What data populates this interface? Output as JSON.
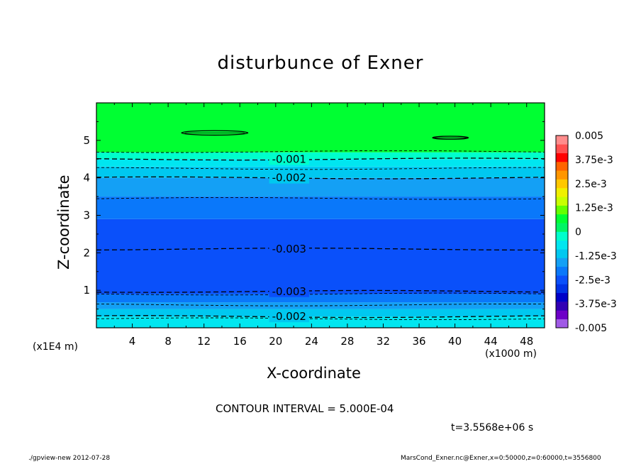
{
  "chart_data": {
    "type": "contour",
    "title": "disturbunce of Exner",
    "xlabel": "X-coordinate",
    "ylabel": "Z-coordinate",
    "x_unit": "(x1000 m)",
    "y_unit": "(x1E4 m)",
    "xlim": [
      0,
      50
    ],
    "ylim": [
      0,
      6
    ],
    "x_ticks": [
      4,
      8,
      12,
      16,
      20,
      24,
      28,
      32,
      36,
      40,
      44,
      48
    ],
    "y_ticks": [
      1,
      2,
      3,
      4,
      5
    ],
    "contour_interval_text": "CONTOUR INTERVAL = 5.000E-04",
    "time_text": "t=3.5568e+06 s",
    "colorbar": {
      "labels": [
        "0.005",
        "3.75e-3",
        "2.5e-3",
        "1.25e-3",
        "0",
        "-1.25e-3",
        "-2.5e-3",
        "-3.75e-3",
        "-0.005"
      ],
      "label_values": [
        0.005,
        0.00375,
        0.0025,
        0.00125,
        0,
        -0.00125,
        -0.0025,
        -0.00375,
        -0.005
      ],
      "colors": [
        "#a05ae6",
        "#6e00c8",
        "#3200b4",
        "#0000c8",
        "#0032e6",
        "#0a50fa",
        "#0a78fa",
        "#14a0f5",
        "#00c8f0",
        "#00e6f0",
        "#00ffcc",
        "#00f564",
        "#00ff32",
        "#64ff00",
        "#c8ff00",
        "#f0f000",
        "#ffc800",
        "#ff9600",
        "#ff6400",
        "#ff0000",
        "#ff5050",
        "#ff8c8c"
      ]
    },
    "bands": [
      {
        "z_from": 0.0,
        "z_to": 0.3,
        "value": -0.00175,
        "color": "#00e6f0"
      },
      {
        "z_from": 0.3,
        "z_to": 0.5,
        "value": -0.00225,
        "color": "#00c8f0"
      },
      {
        "z_from": 0.5,
        "z_to": 0.68,
        "value": -0.00275,
        "color": "#14a0f5"
      },
      {
        "z_from": 0.68,
        "z_to": 0.9,
        "value": -0.00325,
        "color": "#0a78fa"
      },
      {
        "z_from": 0.9,
        "z_to": 2.9,
        "value": -0.00375,
        "color": "#0a50fa"
      },
      {
        "z_from": 2.9,
        "z_to": 3.5,
        "value": -0.00325,
        "color": "#0a78fa"
      },
      {
        "z_from": 3.5,
        "z_to": 4.0,
        "value": -0.00275,
        "color": "#14a0f5"
      },
      {
        "z_from": 4.0,
        "z_to": 4.3,
        "value": -0.00225,
        "color": "#00c8f0"
      },
      {
        "z_from": 4.3,
        "z_to": 4.5,
        "value": -0.00175,
        "color": "#00e6f0"
      },
      {
        "z_from": 4.5,
        "z_to": 4.68,
        "value": -0.00125,
        "color": "#00ffcc"
      },
      {
        "z_from": 4.68,
        "z_to": 6.0,
        "value": -0.0002,
        "color": "#00ff32"
      }
    ],
    "dashed_contours": [
      {
        "z": 0.24,
        "label": ""
      },
      {
        "z": 0.3,
        "label": "-0.002",
        "x_label": 21.5
      },
      {
        "z": 0.61,
        "label": ""
      },
      {
        "z": 0.9,
        "label": ""
      },
      {
        "z": 0.97,
        "label": "-0.003",
        "x_label": 21.5
      },
      {
        "z": 2.1,
        "label": "-0.003",
        "x_label": 21.5
      },
      {
        "z": 3.45,
        "label": ""
      },
      {
        "z": 4.0,
        "label": "-0.002",
        "x_label": 21.5
      },
      {
        "z": 4.25,
        "label": ""
      },
      {
        "z": 4.5,
        "label": "-0.001",
        "x_label": 21.5
      },
      {
        "z": 4.7,
        "label": ""
      }
    ],
    "solid_contours": [
      {
        "x_center": 13.2,
        "z_center": 5.2,
        "x_radius": 3.7,
        "z_radius": 0.06
      },
      {
        "x_center": 39.5,
        "z_center": 5.07,
        "x_radius": 2.0,
        "z_radius": 0.04
      }
    ]
  },
  "footer": {
    "left": "./gpview-new   2012-07-28",
    "right": "MarsCond_Exner.nc@Exner,x=0:50000,z=0:60000,t=3556800"
  }
}
